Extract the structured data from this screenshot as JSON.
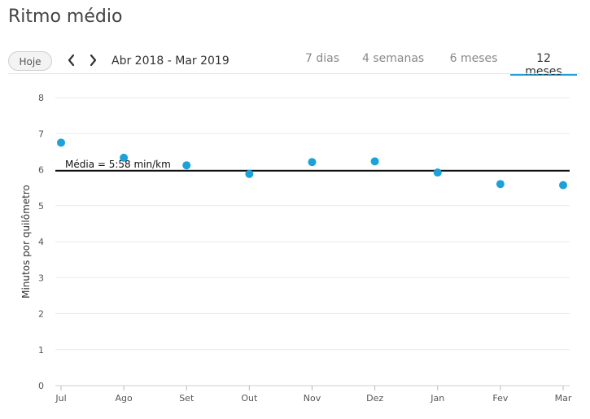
{
  "page": {
    "title": "Ritmo médio"
  },
  "toolbar": {
    "today_label": "Hoje",
    "prev_icon": "chevron-left-icon",
    "next_icon": "chevron-right-icon",
    "range_label": "Abr 2018 - Mar 2019",
    "tabs": [
      {
        "label": "7 dias",
        "active": false
      },
      {
        "label": "4 semanas",
        "active": false
      },
      {
        "label": "6 meses",
        "active": false
      },
      {
        "label": "12 meses",
        "active": true
      }
    ],
    "accent_color": "#1da1d8"
  },
  "chart_data": {
    "type": "scatter",
    "ylabel": "Minutos por quilômetro",
    "ylim": [
      0,
      8
    ],
    "yticks": [
      "0",
      "1",
      "2",
      "3",
      "4",
      "5",
      "6",
      "7",
      "8"
    ],
    "categories": [
      "Jul",
      "Ago",
      "Set",
      "Out",
      "Nov",
      "Dez",
      "Jan",
      "Fev",
      "Mar"
    ],
    "values": [
      6.75,
      6.33,
      6.12,
      5.88,
      6.21,
      6.23,
      5.92,
      5.6,
      5.57
    ],
    "average": {
      "value": 5.97,
      "label": "Média = 5:58 min/km"
    },
    "grid": true,
    "point_color": "#1da1d8"
  }
}
